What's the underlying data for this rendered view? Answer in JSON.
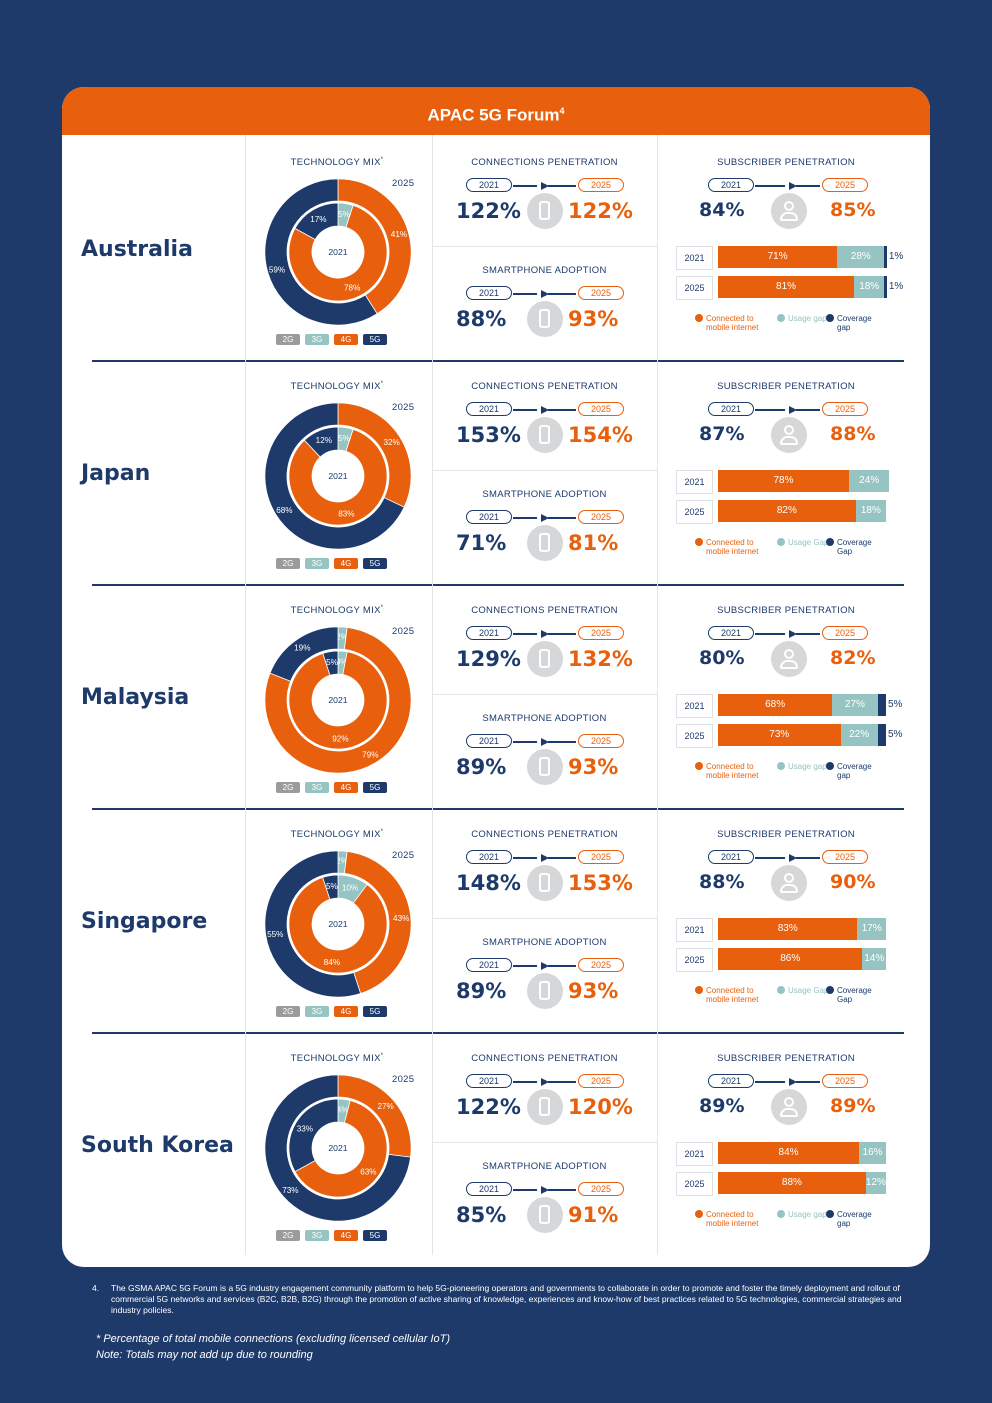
{
  "title": "APAC 5G Forum",
  "title_sup": "4",
  "colors": {
    "2g": "#9a9b9d",
    "3g": "#96c4c3",
    "4g": "#e8600d",
    "5g": "#1d3a6b",
    "navy": "#1d3a6b",
    "orange": "#e8600d",
    "teal": "#96c4c3"
  },
  "labels": {
    "tech_mix": "TECHNOLOGY MIX",
    "tech_mix_sup": "*",
    "connections": "CONNECTIONS PENETRATION",
    "smartphone": "SMARTPHONE ADOPTION",
    "subscriber": "SUBSCRIBER PENETRATION",
    "y2021": "2021",
    "y2025": "2025",
    "legend": [
      "2G",
      "3G",
      "4G",
      "5G"
    ]
  },
  "chart_data": [
    {
      "type": "donut",
      "country": "Australia",
      "mix_2021": {
        "2G": 0,
        "3G": 5,
        "4G": 78,
        "5G": 17
      },
      "mix_2025": {
        "2G": 0,
        "3G": 0,
        "4G": 41,
        "5G": 59
      },
      "connections": {
        "2021": "122%",
        "2025": "122%"
      },
      "smartphone": {
        "2021": "88%",
        "2025": "93%"
      },
      "subscriber": {
        "2021": "84%",
        "2025": "85%"
      },
      "bars": [
        {
          "year": "2021",
          "connected": 71,
          "usage": 28,
          "coverage": 1
        },
        {
          "year": "2025",
          "connected": 81,
          "usage": 18,
          "coverage": 1
        }
      ],
      "bar_legend": [
        "Connected to mobile internet",
        "Usage gap",
        "Coverage gap"
      ]
    },
    {
      "type": "donut",
      "country": "Japan",
      "mix_2021": {
        "2G": 0,
        "3G": 5,
        "4G": 83,
        "5G": 12
      },
      "mix_2025": {
        "2G": 0,
        "3G": 0,
        "4G": 32,
        "5G": 68
      },
      "connections": {
        "2021": "153%",
        "2025": "154%"
      },
      "smartphone": {
        "2021": "71%",
        "2025": "81%"
      },
      "subscriber": {
        "2021": "87%",
        "2025": "88%"
      },
      "bars": [
        {
          "year": "2021",
          "connected": 78,
          "usage": 24,
          "coverage": 0
        },
        {
          "year": "2025",
          "connected": 82,
          "usage": 18,
          "coverage": 0
        }
      ],
      "bar_legend": [
        "Connected to mobile internet",
        "Usage Gap",
        "Coverage Gap"
      ]
    },
    {
      "type": "donut",
      "country": "Malaysia",
      "mix_2021": {
        "2G": 0,
        "3G": 3,
        "4G": 92,
        "5G": 5
      },
      "mix_2025": {
        "2G": 0,
        "3G": 2,
        "4G": 79,
        "5G": 19
      },
      "connections": {
        "2021": "129%",
        "2025": "132%"
      },
      "smartphone": {
        "2021": "89%",
        "2025": "93%"
      },
      "subscriber": {
        "2021": "80%",
        "2025": "82%"
      },
      "bars": [
        {
          "year": "2021",
          "connected": 68,
          "usage": 27,
          "coverage": 5
        },
        {
          "year": "2025",
          "connected": 73,
          "usage": 22,
          "coverage": 5
        }
      ],
      "bar_legend": [
        "Connected to mobile internet",
        "Usage gap",
        "Coverage gap"
      ]
    },
    {
      "type": "donut",
      "country": "Singapore",
      "mix_2021": {
        "2G": 0,
        "3G": 10,
        "4G": 84,
        "5G": 5
      },
      "mix_2025": {
        "2G": 0,
        "3G": 2,
        "4G": 43,
        "5G": 55
      },
      "connections": {
        "2021": "148%",
        "2025": "153%"
      },
      "smartphone": {
        "2021": "89%",
        "2025": "93%"
      },
      "subscriber": {
        "2021": "88%",
        "2025": "90%"
      },
      "bars": [
        {
          "year": "2021",
          "connected": 83,
          "usage": 17,
          "coverage": 0
        },
        {
          "year": "2025",
          "connected": 86,
          "usage": 14,
          "coverage": 0
        }
      ],
      "bar_legend": [
        "Connected to mobile internet",
        "Usage Gap",
        "Coverage Gap"
      ]
    },
    {
      "type": "donut",
      "country": "South Korea",
      "mix_2021": {
        "2G": 0,
        "3G": 4,
        "4G": 63,
        "5G": 33
      },
      "mix_2025": {
        "2G": 0,
        "3G": 0,
        "4G": 27,
        "5G": 73
      },
      "connections": {
        "2021": "122%",
        "2025": "120%"
      },
      "smartphone": {
        "2021": "85%",
        "2025": "91%"
      },
      "subscriber": {
        "2021": "89%",
        "2025": "89%"
      },
      "bars": [
        {
          "year": "2021",
          "connected": 84,
          "usage": 16,
          "coverage": 0
        },
        {
          "year": "2025",
          "connected": 88,
          "usage": 12,
          "coverage": 0
        }
      ],
      "bar_legend": [
        "Connected to mobile internet",
        "Usage gap",
        "Coverage gap"
      ]
    }
  ],
  "footnote_num": "4.",
  "footnote": "The GSMA APAC 5G Forum is a 5G industry engagement community platform to help 5G-pioneering operators and governments to collaborate in order to promote and foster the timely deployment and rollout of commercial 5G networks and services (B2C, B2B, B2G) through the promotion of active sharing of knowledge, experiences and know-how of best practices related to 5G technologies, commercial strategies and industry policies.",
  "note1": "* Percentage of total mobile connections (excluding licensed cellular IoT)",
  "note2": "Note: Totals may not add up due to rounding"
}
